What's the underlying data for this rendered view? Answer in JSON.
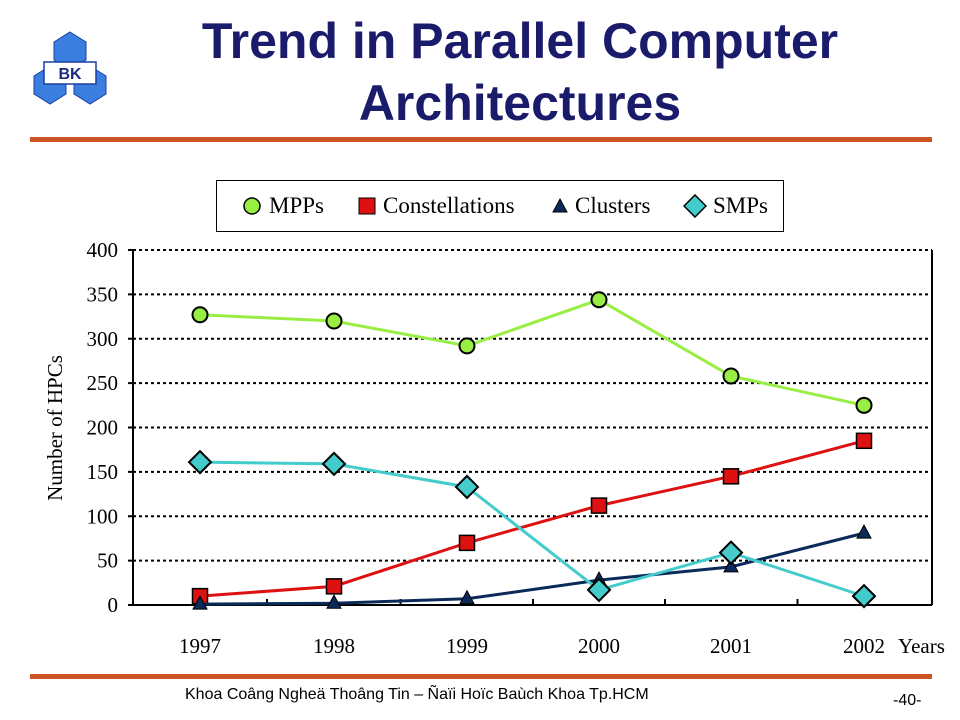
{
  "header": {
    "logo_text": "BK",
    "title_line1": "Trend in Parallel Computer",
    "title_line2": "Architectures"
  },
  "footer": {
    "text": "Khoa Coâng Ngheä Thoâng Tin – Ñaïi Hoïc Baùch Khoa Tp.HCM",
    "page": "-40-"
  },
  "colors": {
    "title": "#1b1b6b",
    "rule": "#cc5522",
    "mpps": "#99ee44",
    "constellations": "#dd1111",
    "clusters": "#0b2a5a",
    "smps": "#44cccc"
  },
  "chart_data": {
    "type": "line",
    "x": [
      "1997",
      "1998",
      "1999",
      "2000",
      "2001",
      "2002"
    ],
    "xlabel": "Years",
    "ylabel": "Number of HPCs",
    "ylim": [
      0,
      400
    ],
    "yticks": [
      0,
      50,
      100,
      150,
      200,
      250,
      300,
      350,
      400
    ],
    "grid": true,
    "legend_position": "top",
    "series": [
      {
        "name": "MPPs",
        "marker": "circle",
        "color": "#99ee44",
        "values": [
          327,
          320,
          292,
          344,
          258,
          225
        ]
      },
      {
        "name": "Constellations",
        "marker": "square",
        "color": "#dd1111",
        "values": [
          10,
          21,
          70,
          112,
          145,
          185
        ]
      },
      {
        "name": "Clusters",
        "marker": "triangle",
        "color": "#0b2a5a",
        "values": [
          1,
          2,
          7,
          28,
          43,
          81
        ]
      },
      {
        "name": "SMPs",
        "marker": "diamond",
        "color": "#44cccc",
        "values": [
          161,
          159,
          133,
          17,
          59,
          10
        ]
      }
    ]
  }
}
